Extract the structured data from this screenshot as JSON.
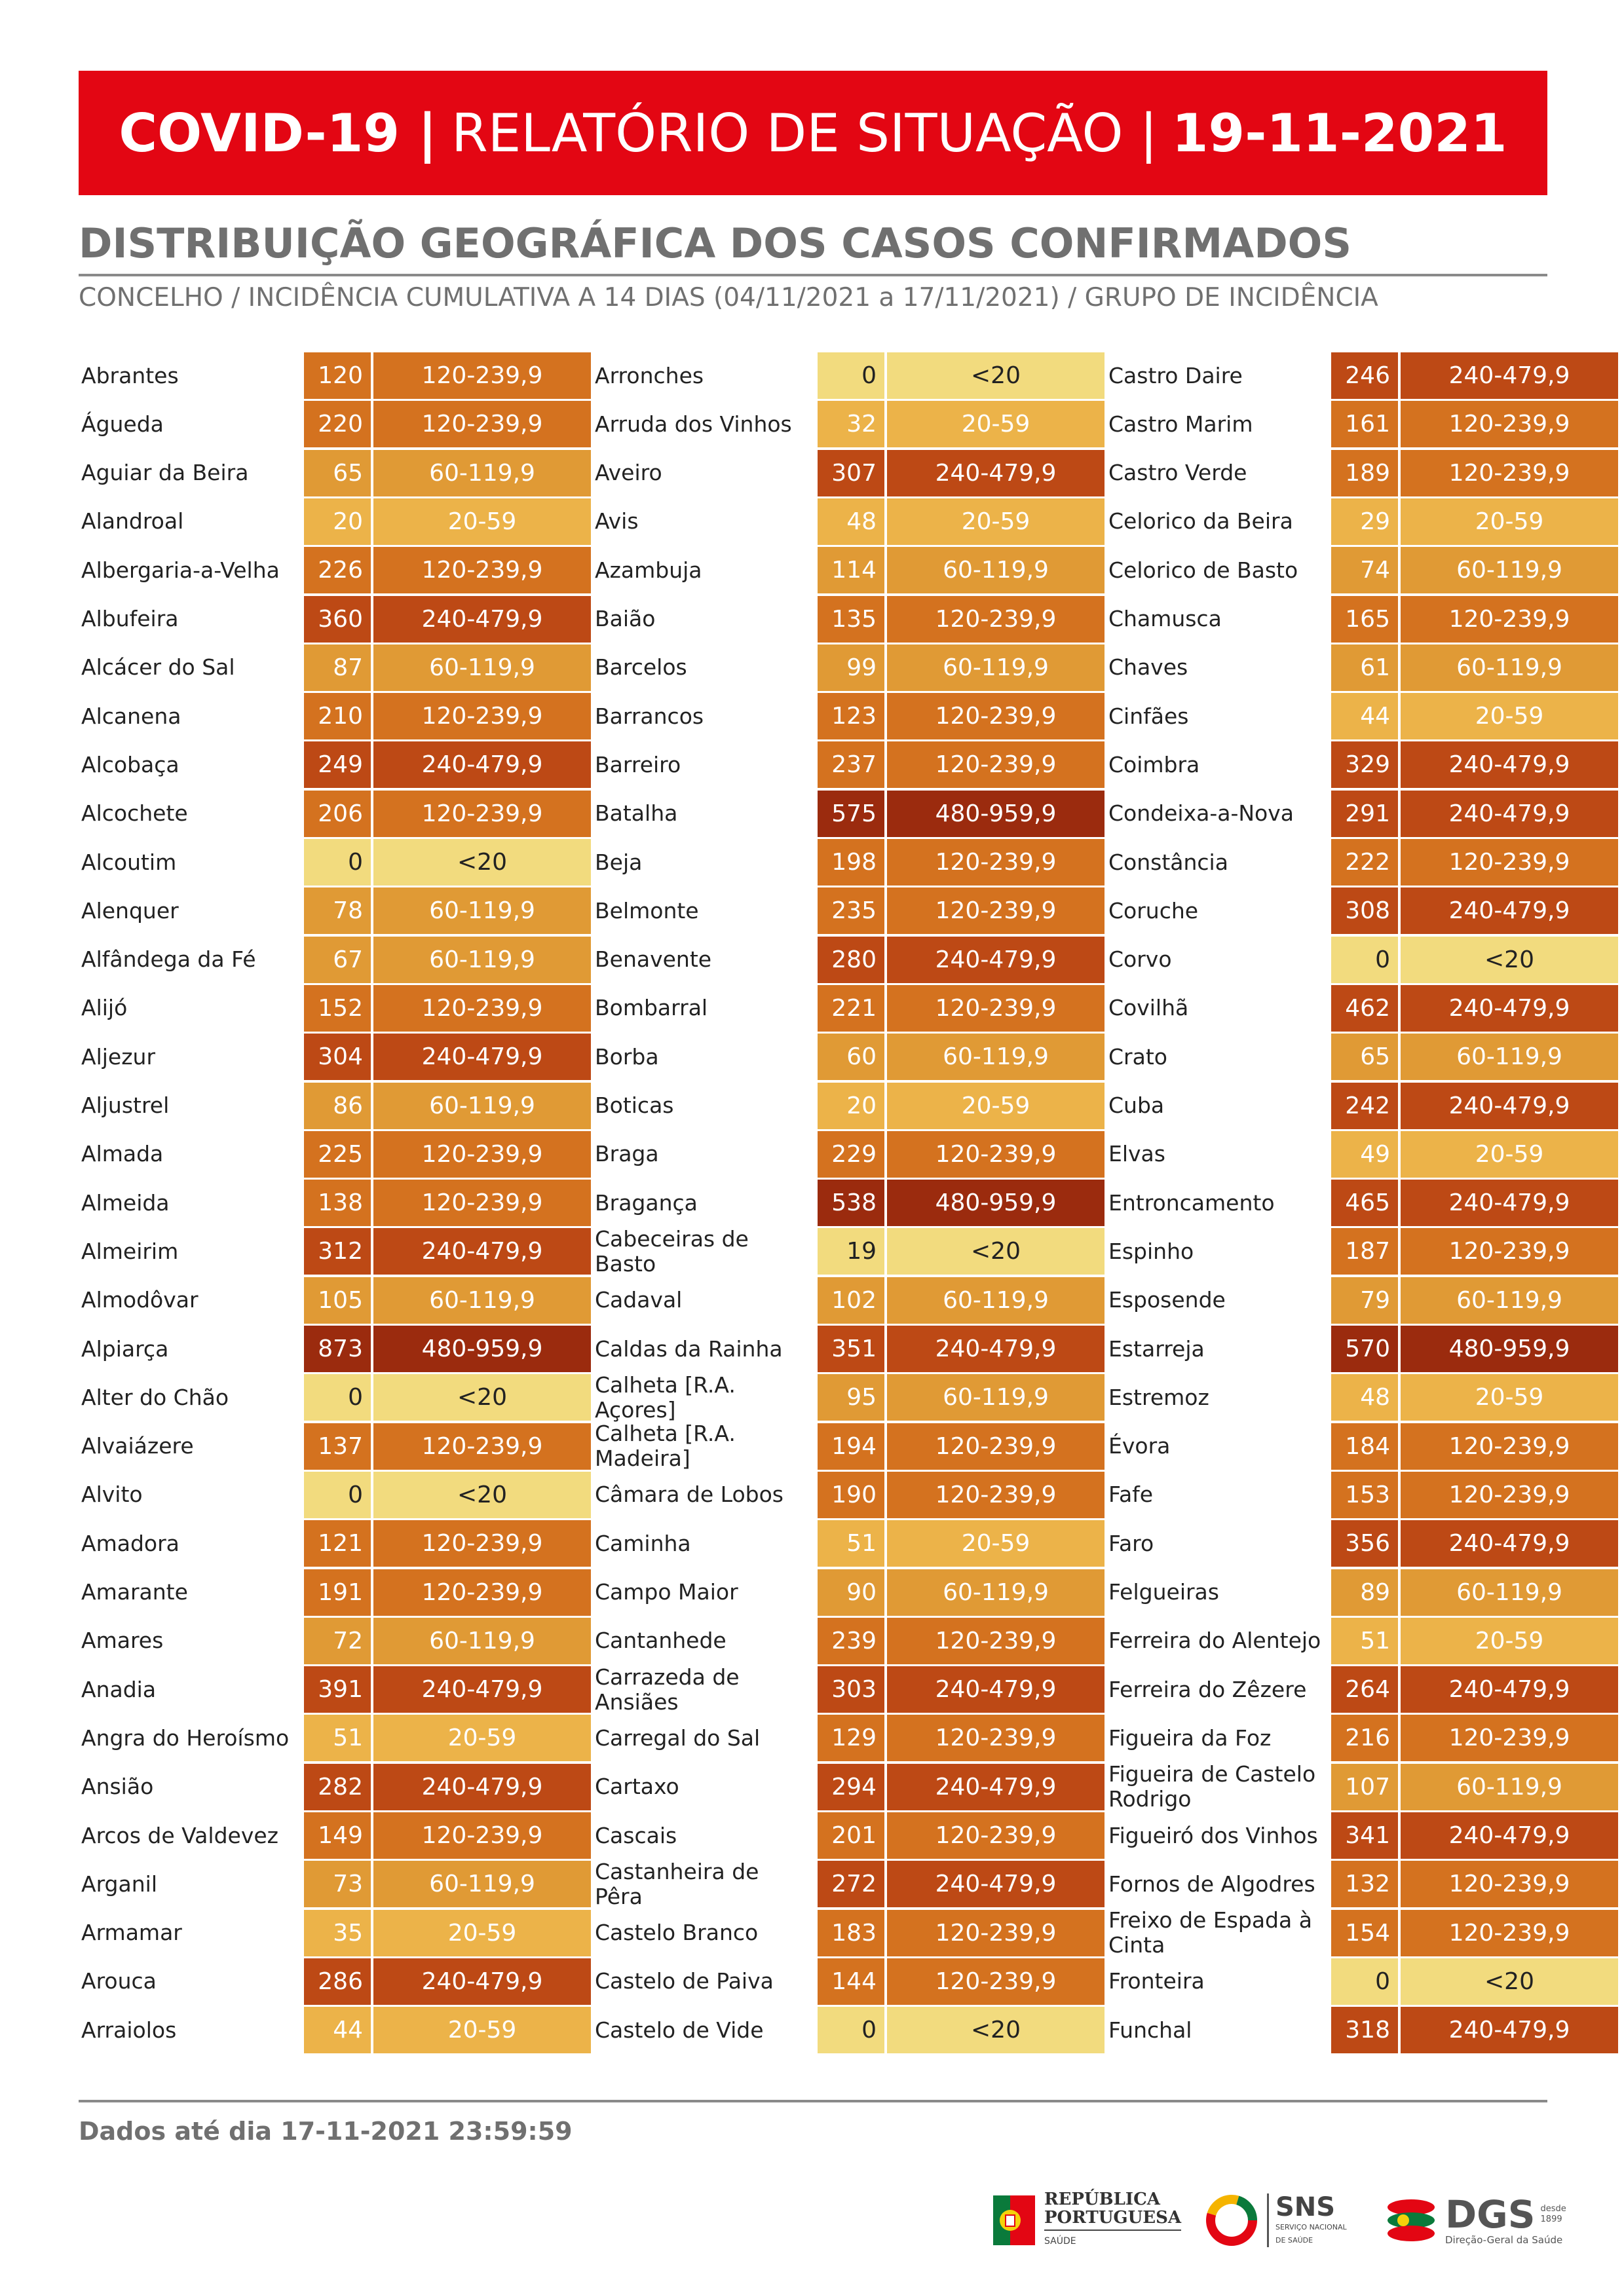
{
  "header": {
    "title_left": "COVID-19 |",
    "title_mid": "RELATÓRIO DE SITUAÇÃO |",
    "title_date": "19-11-2021"
  },
  "section_title": "DISTRIBUIÇÃO GEOGRÁFICA DOS CASOS CONFIRMADOS",
  "section_subtitle": "CONCELHO / INCIDÊNCIA CUMULATIVA A 14 DIAS (04/11/2021 a 17/11/2021) / GRUPO DE INCIDÊNCIA",
  "colors": {
    "<20": "#f2db7e",
    "20-59": "#ecb349",
    "60-119,9": "#e09a35",
    "120-239,9": "#d4721f",
    "240-479,9": "#bd4915",
    "480-959,9": "#9b2b0e"
  },
  "columns": [
    [
      {
        "name": "Abrantes",
        "value": "120",
        "group": "120-239,9"
      },
      {
        "name": "Águeda",
        "value": "220",
        "group": "120-239,9"
      },
      {
        "name": "Aguiar da Beira",
        "value": "65",
        "group": "60-119,9"
      },
      {
        "name": "Alandroal",
        "value": "20",
        "group": "20-59"
      },
      {
        "name": "Albergaria-a-Velha",
        "value": "226",
        "group": "120-239,9"
      },
      {
        "name": "Albufeira",
        "value": "360",
        "group": "240-479,9"
      },
      {
        "name": "Alcácer do Sal",
        "value": "87",
        "group": "60-119,9"
      },
      {
        "name": "Alcanena",
        "value": "210",
        "group": "120-239,9"
      },
      {
        "name": "Alcobaça",
        "value": "249",
        "group": "240-479,9"
      },
      {
        "name": "Alcochete",
        "value": "206",
        "group": "120-239,9"
      },
      {
        "name": "Alcoutim",
        "value": "0",
        "group": "<20"
      },
      {
        "name": "Alenquer",
        "value": "78",
        "group": "60-119,9"
      },
      {
        "name": "Alfândega da Fé",
        "value": "67",
        "group": "60-119,9"
      },
      {
        "name": "Alijó",
        "value": "152",
        "group": "120-239,9"
      },
      {
        "name": "Aljezur",
        "value": "304",
        "group": "240-479,9"
      },
      {
        "name": "Aljustrel",
        "value": "86",
        "group": "60-119,9"
      },
      {
        "name": "Almada",
        "value": "225",
        "group": "120-239,9"
      },
      {
        "name": "Almeida",
        "value": "138",
        "group": "120-239,9"
      },
      {
        "name": "Almeirim",
        "value": "312",
        "group": "240-479,9"
      },
      {
        "name": "Almodôvar",
        "value": "105",
        "group": "60-119,9"
      },
      {
        "name": "Alpiarça",
        "value": "873",
        "group": "480-959,9"
      },
      {
        "name": "Alter do Chão",
        "value": "0",
        "group": "<20"
      },
      {
        "name": "Alvaiázere",
        "value": "137",
        "group": "120-239,9"
      },
      {
        "name": "Alvito",
        "value": "0",
        "group": "<20"
      },
      {
        "name": "Amadora",
        "value": "121",
        "group": "120-239,9"
      },
      {
        "name": "Amarante",
        "value": "191",
        "group": "120-239,9"
      },
      {
        "name": "Amares",
        "value": "72",
        "group": "60-119,9"
      },
      {
        "name": "Anadia",
        "value": "391",
        "group": "240-479,9"
      },
      {
        "name": "Angra do Heroísmo",
        "value": "51",
        "group": "20-59"
      },
      {
        "name": "Ansião",
        "value": "282",
        "group": "240-479,9"
      },
      {
        "name": "Arcos de Valdevez",
        "value": "149",
        "group": "120-239,9"
      },
      {
        "name": "Arganil",
        "value": "73",
        "group": "60-119,9"
      },
      {
        "name": "Armamar",
        "value": "35",
        "group": "20-59"
      },
      {
        "name": "Arouca",
        "value": "286",
        "group": "240-479,9"
      },
      {
        "name": "Arraiolos",
        "value": "44",
        "group": "20-59"
      }
    ],
    [
      {
        "name": "Arronches",
        "value": "0",
        "group": "<20"
      },
      {
        "name": "Arruda dos Vinhos",
        "value": "32",
        "group": "20-59"
      },
      {
        "name": "Aveiro",
        "value": "307",
        "group": "240-479,9"
      },
      {
        "name": "Avis",
        "value": "48",
        "group": "20-59"
      },
      {
        "name": "Azambuja",
        "value": "114",
        "group": "60-119,9"
      },
      {
        "name": "Baião",
        "value": "135",
        "group": "120-239,9"
      },
      {
        "name": "Barcelos",
        "value": "99",
        "group": "60-119,9"
      },
      {
        "name": "Barrancos",
        "value": "123",
        "group": "120-239,9"
      },
      {
        "name": "Barreiro",
        "value": "237",
        "group": "120-239,9"
      },
      {
        "name": "Batalha",
        "value": "575",
        "group": "480-959,9"
      },
      {
        "name": "Beja",
        "value": "198",
        "group": "120-239,9"
      },
      {
        "name": "Belmonte",
        "value": "235",
        "group": "120-239,9"
      },
      {
        "name": "Benavente",
        "value": "280",
        "group": "240-479,9"
      },
      {
        "name": "Bombarral",
        "value": "221",
        "group": "120-239,9"
      },
      {
        "name": "Borba",
        "value": "60",
        "group": "60-119,9"
      },
      {
        "name": "Boticas",
        "value": "20",
        "group": "20-59"
      },
      {
        "name": "Braga",
        "value": "229",
        "group": "120-239,9"
      },
      {
        "name": "Bragança",
        "value": "538",
        "group": "480-959,9"
      },
      {
        "name": "Cabeceiras de Basto",
        "value": "19",
        "group": "<20"
      },
      {
        "name": "Cadaval",
        "value": "102",
        "group": "60-119,9"
      },
      {
        "name": "Caldas da Rainha",
        "value": "351",
        "group": "240-479,9"
      },
      {
        "name": "Calheta [R.A. Açores]",
        "value": "95",
        "group": "60-119,9"
      },
      {
        "name": "Calheta [R.A. Madeira]",
        "value": "194",
        "group": "120-239,9"
      },
      {
        "name": "Câmara de Lobos",
        "value": "190",
        "group": "120-239,9"
      },
      {
        "name": "Caminha",
        "value": "51",
        "group": "20-59"
      },
      {
        "name": "Campo Maior",
        "value": "90",
        "group": "60-119,9"
      },
      {
        "name": "Cantanhede",
        "value": "239",
        "group": "120-239,9"
      },
      {
        "name": "Carrazeda de Ansiães",
        "value": "303",
        "group": "240-479,9"
      },
      {
        "name": "Carregal do Sal",
        "value": "129",
        "group": "120-239,9"
      },
      {
        "name": "Cartaxo",
        "value": "294",
        "group": "240-479,9"
      },
      {
        "name": "Cascais",
        "value": "201",
        "group": "120-239,9"
      },
      {
        "name": "Castanheira de Pêra",
        "value": "272",
        "group": "240-479,9"
      },
      {
        "name": "Castelo Branco",
        "value": "183",
        "group": "120-239,9"
      },
      {
        "name": "Castelo de Paiva",
        "value": "144",
        "group": "120-239,9"
      },
      {
        "name": "Castelo de Vide",
        "value": "0",
        "group": "<20"
      }
    ],
    [
      {
        "name": "Castro Daire",
        "value": "246",
        "group": "240-479,9"
      },
      {
        "name": "Castro Marim",
        "value": "161",
        "group": "120-239,9"
      },
      {
        "name": "Castro Verde",
        "value": "189",
        "group": "120-239,9"
      },
      {
        "name": "Celorico da Beira",
        "value": "29",
        "group": "20-59"
      },
      {
        "name": "Celorico de Basto",
        "value": "74",
        "group": "60-119,9"
      },
      {
        "name": "Chamusca",
        "value": "165",
        "group": "120-239,9"
      },
      {
        "name": "Chaves",
        "value": "61",
        "group": "60-119,9"
      },
      {
        "name": "Cinfães",
        "value": "44",
        "group": "20-59"
      },
      {
        "name": "Coimbra",
        "value": "329",
        "group": "240-479,9"
      },
      {
        "name": "Condeixa-a-Nova",
        "value": "291",
        "group": "240-479,9"
      },
      {
        "name": "Constância",
        "value": "222",
        "group": "120-239,9"
      },
      {
        "name": "Coruche",
        "value": "308",
        "group": "240-479,9"
      },
      {
        "name": "Corvo",
        "value": "0",
        "group": "<20"
      },
      {
        "name": "Covilhã",
        "value": "462",
        "group": "240-479,9"
      },
      {
        "name": "Crato",
        "value": "65",
        "group": "60-119,9"
      },
      {
        "name": "Cuba",
        "value": "242",
        "group": "240-479,9"
      },
      {
        "name": "Elvas",
        "value": "49",
        "group": "20-59"
      },
      {
        "name": "Entroncamento",
        "value": "465",
        "group": "240-479,9"
      },
      {
        "name": "Espinho",
        "value": "187",
        "group": "120-239,9"
      },
      {
        "name": "Esposende",
        "value": "79",
        "group": "60-119,9"
      },
      {
        "name": "Estarreja",
        "value": "570",
        "group": "480-959,9"
      },
      {
        "name": "Estremoz",
        "value": "48",
        "group": "20-59"
      },
      {
        "name": "Évora",
        "value": "184",
        "group": "120-239,9"
      },
      {
        "name": "Fafe",
        "value": "153",
        "group": "120-239,9"
      },
      {
        "name": "Faro",
        "value": "356",
        "group": "240-479,9"
      },
      {
        "name": "Felgueiras",
        "value": "89",
        "group": "60-119,9"
      },
      {
        "name": "Ferreira do Alentejo",
        "value": "51",
        "group": "20-59"
      },
      {
        "name": "Ferreira do Zêzere",
        "value": "264",
        "group": "240-479,9"
      },
      {
        "name": "Figueira da Foz",
        "value": "216",
        "group": "120-239,9"
      },
      {
        "name": "Figueira de Castelo Rodrigo",
        "value": "107",
        "group": "60-119,9"
      },
      {
        "name": "Figueiró dos Vinhos",
        "value": "341",
        "group": "240-479,9"
      },
      {
        "name": "Fornos de Algodres",
        "value": "132",
        "group": "120-239,9"
      },
      {
        "name": "Freixo de Espada à Cinta",
        "value": "154",
        "group": "120-239,9"
      },
      {
        "name": "Fronteira",
        "value": "0",
        "group": "<20"
      },
      {
        "name": "Funchal",
        "value": "318",
        "group": "240-479,9"
      }
    ]
  ],
  "footer": "Dados até dia 17-11-2021 23:59:59",
  "logos": {
    "republica_line1": "REPÚBLICA",
    "republica_line2": "PORTUGUESA",
    "republica_line3": "SAÚDE",
    "sns": "SNS",
    "sns_sub1": "SERVIÇO NACIONAL",
    "sns_sub2": "DE SAÚDE",
    "dgs": "DGS",
    "dgs_year1": "desde",
    "dgs_year2": "1899",
    "dgs_sub": "Direção-Geral da Saúde"
  }
}
